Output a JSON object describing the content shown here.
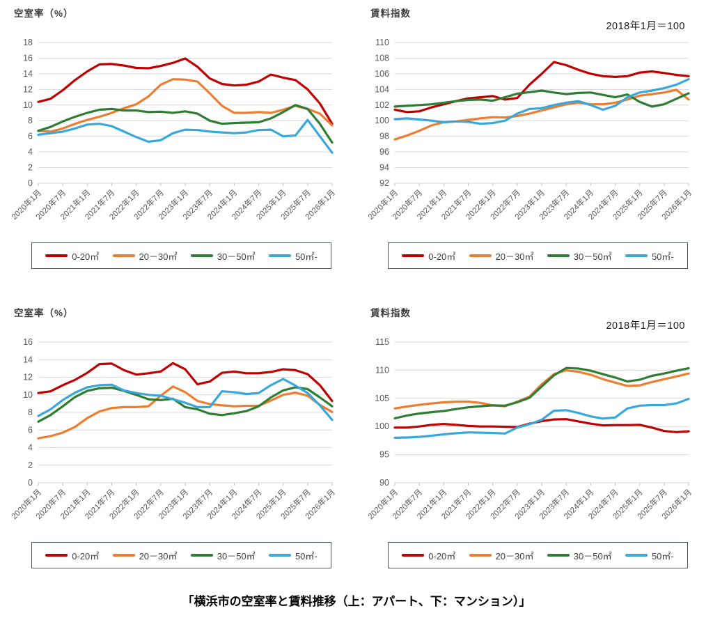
{
  "page": {
    "caption": "「横浜市の空室率と賃料推移（上：アパート、下：マンション）」"
  },
  "colors": {
    "red": "#c00000",
    "orange": "#ed7d31",
    "green": "#2e7d32",
    "blue": "#38a8dc",
    "grid": "#d9d9d9",
    "tick": "#bfbfbf",
    "axis_text": "#595959"
  },
  "chart_data": [
    {
      "id": "apartment-vacancy",
      "type": "line",
      "title": "空室率（%）",
      "subtitle": null,
      "ylim": [
        0,
        18
      ],
      "ytick_step": 2,
      "grid": true,
      "legend_position": "bottom-box",
      "sampling": "quarterly between half-year tick labels",
      "categories": [
        "2020年1月",
        "2020年7月",
        "2021年1月",
        "2021年7月",
        "2022年1月",
        "2022年7月",
        "2023年1月",
        "2023年7月",
        "2024年1月",
        "2024年7月",
        "2025年1月",
        "2025年7月",
        "2026年1月"
      ],
      "series": [
        {
          "name": "0-20㎡",
          "color": "red",
          "values": [
            10.4,
            10.8,
            11.9,
            13.2,
            14.3,
            15.2,
            15.25,
            15.05,
            14.75,
            14.7,
            15.0,
            15.4,
            15.95,
            14.9,
            13.4,
            12.7,
            12.5,
            12.6,
            13.0,
            13.9,
            13.5,
            13.2,
            12.0,
            10.2,
            7.6
          ]
        },
        {
          "name": "20－30㎡",
          "color": "orange",
          "values": [
            6.7,
            6.6,
            7.0,
            7.6,
            8.1,
            8.5,
            9.0,
            9.6,
            10.1,
            11.1,
            12.6,
            13.3,
            13.25,
            13.0,
            11.5,
            9.9,
            9.0,
            9.0,
            9.1,
            9.0,
            9.4,
            9.9,
            9.5,
            8.9,
            7.4
          ]
        },
        {
          "name": "30－50㎡",
          "color": "green",
          "values": [
            6.7,
            7.2,
            7.9,
            8.5,
            9.0,
            9.4,
            9.5,
            9.3,
            9.3,
            9.1,
            9.15,
            9.0,
            9.2,
            8.9,
            8.0,
            7.6,
            7.7,
            7.75,
            7.8,
            8.3,
            9.1,
            10.0,
            9.5,
            7.6,
            5.2
          ]
        },
        {
          "name": "50㎡-",
          "color": "blue",
          "values": [
            6.2,
            6.4,
            6.6,
            7.0,
            7.5,
            7.6,
            7.3,
            6.6,
            5.9,
            5.3,
            5.5,
            6.4,
            6.85,
            6.8,
            6.6,
            6.5,
            6.4,
            6.5,
            6.8,
            6.85,
            6.0,
            6.1,
            8.1,
            6.0,
            3.9
          ]
        }
      ]
    },
    {
      "id": "apartment-rent-index",
      "type": "line",
      "title": "賃料指数",
      "subtitle": "2018年1月＝100",
      "ylim": [
        92,
        110
      ],
      "ytick_step": 2,
      "grid": true,
      "legend_position": "bottom-box",
      "sampling": "quarterly between half-year tick labels",
      "categories": [
        "2020年1月",
        "2020年7月",
        "2021年1月",
        "2021年7月",
        "2022年1月",
        "2022年7月",
        "2023年1月",
        "2023年7月",
        "2024年1月",
        "2024年7月",
        "2025年1月",
        "2025年7月",
        "2026年1月"
      ],
      "series": [
        {
          "name": "0-20㎡",
          "color": "red",
          "values": [
            101.4,
            101.1,
            101.2,
            101.7,
            102.1,
            102.5,
            102.85,
            103.0,
            103.15,
            102.7,
            102.9,
            104.6,
            106.0,
            107.5,
            107.1,
            106.5,
            106.0,
            105.7,
            105.6,
            105.7,
            106.15,
            106.3,
            106.1,
            105.85,
            105.7
          ]
        },
        {
          "name": "20－30㎡",
          "color": "orange",
          "values": [
            97.6,
            98.1,
            98.7,
            99.4,
            99.8,
            99.9,
            100.1,
            100.3,
            100.45,
            100.4,
            100.6,
            100.9,
            101.3,
            101.7,
            102.1,
            102.3,
            102.1,
            102.1,
            102.3,
            102.7,
            103.2,
            103.4,
            103.6,
            103.95,
            102.7
          ]
        },
        {
          "name": "30－50㎡",
          "color": "green",
          "values": [
            101.8,
            101.9,
            102.0,
            102.1,
            102.3,
            102.5,
            102.65,
            102.7,
            102.55,
            103.0,
            103.45,
            103.65,
            103.85,
            103.6,
            103.4,
            103.55,
            103.6,
            103.3,
            103.0,
            103.35,
            102.4,
            101.8,
            102.1,
            102.8,
            103.5
          ]
        },
        {
          "name": "50㎡-",
          "color": "blue",
          "values": [
            100.2,
            100.3,
            100.15,
            100.0,
            99.8,
            99.9,
            99.85,
            99.6,
            99.7,
            100.0,
            100.9,
            101.5,
            101.6,
            102.0,
            102.3,
            102.5,
            102.0,
            101.4,
            101.9,
            103.0,
            103.6,
            103.85,
            104.15,
            104.6,
            105.3
          ]
        }
      ]
    },
    {
      "id": "mansion-vacancy",
      "type": "line",
      "title": "空室率（%）",
      "subtitle": null,
      "ylim": [
        0,
        16
      ],
      "ytick_step": 2,
      "grid": true,
      "legend_position": "bottom-box",
      "sampling": "quarterly between half-year tick labels",
      "categories": [
        "2020年1月",
        "2020年7月",
        "2021年1月",
        "2021年7月",
        "2022年1月",
        "2022年7月",
        "2023年1月",
        "2023年7月",
        "2024年1月",
        "2024年7月",
        "2025年1月",
        "2025年7月",
        "2026年1月"
      ],
      "series": [
        {
          "name": "0-20㎡",
          "color": "red",
          "values": [
            10.2,
            10.4,
            11.1,
            11.7,
            12.5,
            13.5,
            13.55,
            12.8,
            12.3,
            12.45,
            12.65,
            13.6,
            12.9,
            11.2,
            11.5,
            12.5,
            12.65,
            12.45,
            12.45,
            12.6,
            12.9,
            12.8,
            12.35,
            11.1,
            9.3
          ]
        },
        {
          "name": "20－30㎡",
          "color": "orange",
          "values": [
            5.05,
            5.3,
            5.7,
            6.35,
            7.35,
            8.1,
            8.5,
            8.6,
            8.6,
            8.7,
            9.9,
            10.95,
            10.3,
            9.3,
            8.95,
            8.8,
            8.7,
            8.75,
            8.75,
            9.35,
            10.0,
            10.25,
            9.9,
            8.85,
            8.05
          ]
        },
        {
          "name": "30－50㎡",
          "color": "green",
          "values": [
            6.95,
            7.7,
            8.7,
            9.75,
            10.45,
            10.75,
            10.8,
            10.45,
            10.0,
            9.5,
            9.4,
            9.55,
            8.6,
            8.35,
            7.85,
            7.7,
            7.9,
            8.15,
            8.7,
            9.7,
            10.5,
            10.85,
            10.65,
            9.7,
            8.7
          ]
        },
        {
          "name": "50㎡-",
          "color": "blue",
          "values": [
            7.6,
            8.35,
            9.4,
            10.25,
            10.85,
            11.1,
            11.15,
            10.5,
            10.2,
            10.0,
            9.9,
            9.5,
            9.1,
            8.6,
            8.6,
            10.4,
            10.3,
            10.1,
            10.2,
            11.1,
            11.8,
            11.05,
            10.2,
            8.8,
            7.15
          ]
        }
      ]
    },
    {
      "id": "mansion-rent-index",
      "type": "line",
      "title": "賃料指数",
      "subtitle": "2018年1月＝100",
      "ylim": [
        90,
        115
      ],
      "ytick_step": 5,
      "grid": true,
      "legend_position": "bottom-box",
      "sampling": "quarterly between half-year tick labels",
      "categories": [
        "2020年1月",
        "2020年7月",
        "2021年1月",
        "2021年7月",
        "2022年1月",
        "2022年7月",
        "2023年1月",
        "2023年7月",
        "2024年1月",
        "2024年7月",
        "2025年1月",
        "2025年7月",
        "2026年1月"
      ],
      "series": [
        {
          "name": "0-20㎡",
          "color": "red",
          "values": [
            99.8,
            99.8,
            100.0,
            100.3,
            100.45,
            100.3,
            100.1,
            100.0,
            100.0,
            99.95,
            99.9,
            100.5,
            100.95,
            101.25,
            101.3,
            100.9,
            100.5,
            100.2,
            100.25,
            100.25,
            100.3,
            99.8,
            99.2,
            99.0,
            99.15
          ]
        },
        {
          "name": "20－30㎡",
          "color": "orange",
          "values": [
            103.2,
            103.55,
            103.85,
            104.1,
            104.3,
            104.4,
            104.4,
            104.2,
            103.75,
            103.6,
            104.4,
            105.3,
            107.5,
            109.3,
            110.0,
            109.7,
            109.2,
            108.4,
            107.8,
            107.2,
            107.3,
            107.9,
            108.4,
            108.9,
            109.4
          ]
        },
        {
          "name": "30－50㎡",
          "color": "green",
          "values": [
            101.45,
            101.95,
            102.3,
            102.55,
            102.75,
            103.1,
            103.4,
            103.6,
            103.75,
            103.7,
            104.3,
            105.1,
            107.1,
            109.1,
            110.4,
            110.3,
            109.9,
            109.3,
            108.7,
            108.0,
            108.3,
            109.0,
            109.4,
            109.9,
            110.35
          ]
        },
        {
          "name": "50㎡-",
          "color": "blue",
          "values": [
            98.0,
            98.05,
            98.15,
            98.35,
            98.6,
            98.8,
            98.95,
            98.9,
            98.85,
            98.75,
            99.8,
            100.4,
            101.2,
            102.8,
            102.9,
            102.4,
            101.8,
            101.4,
            101.6,
            103.2,
            103.7,
            103.8,
            103.8,
            104.1,
            104.9
          ]
        }
      ]
    }
  ]
}
